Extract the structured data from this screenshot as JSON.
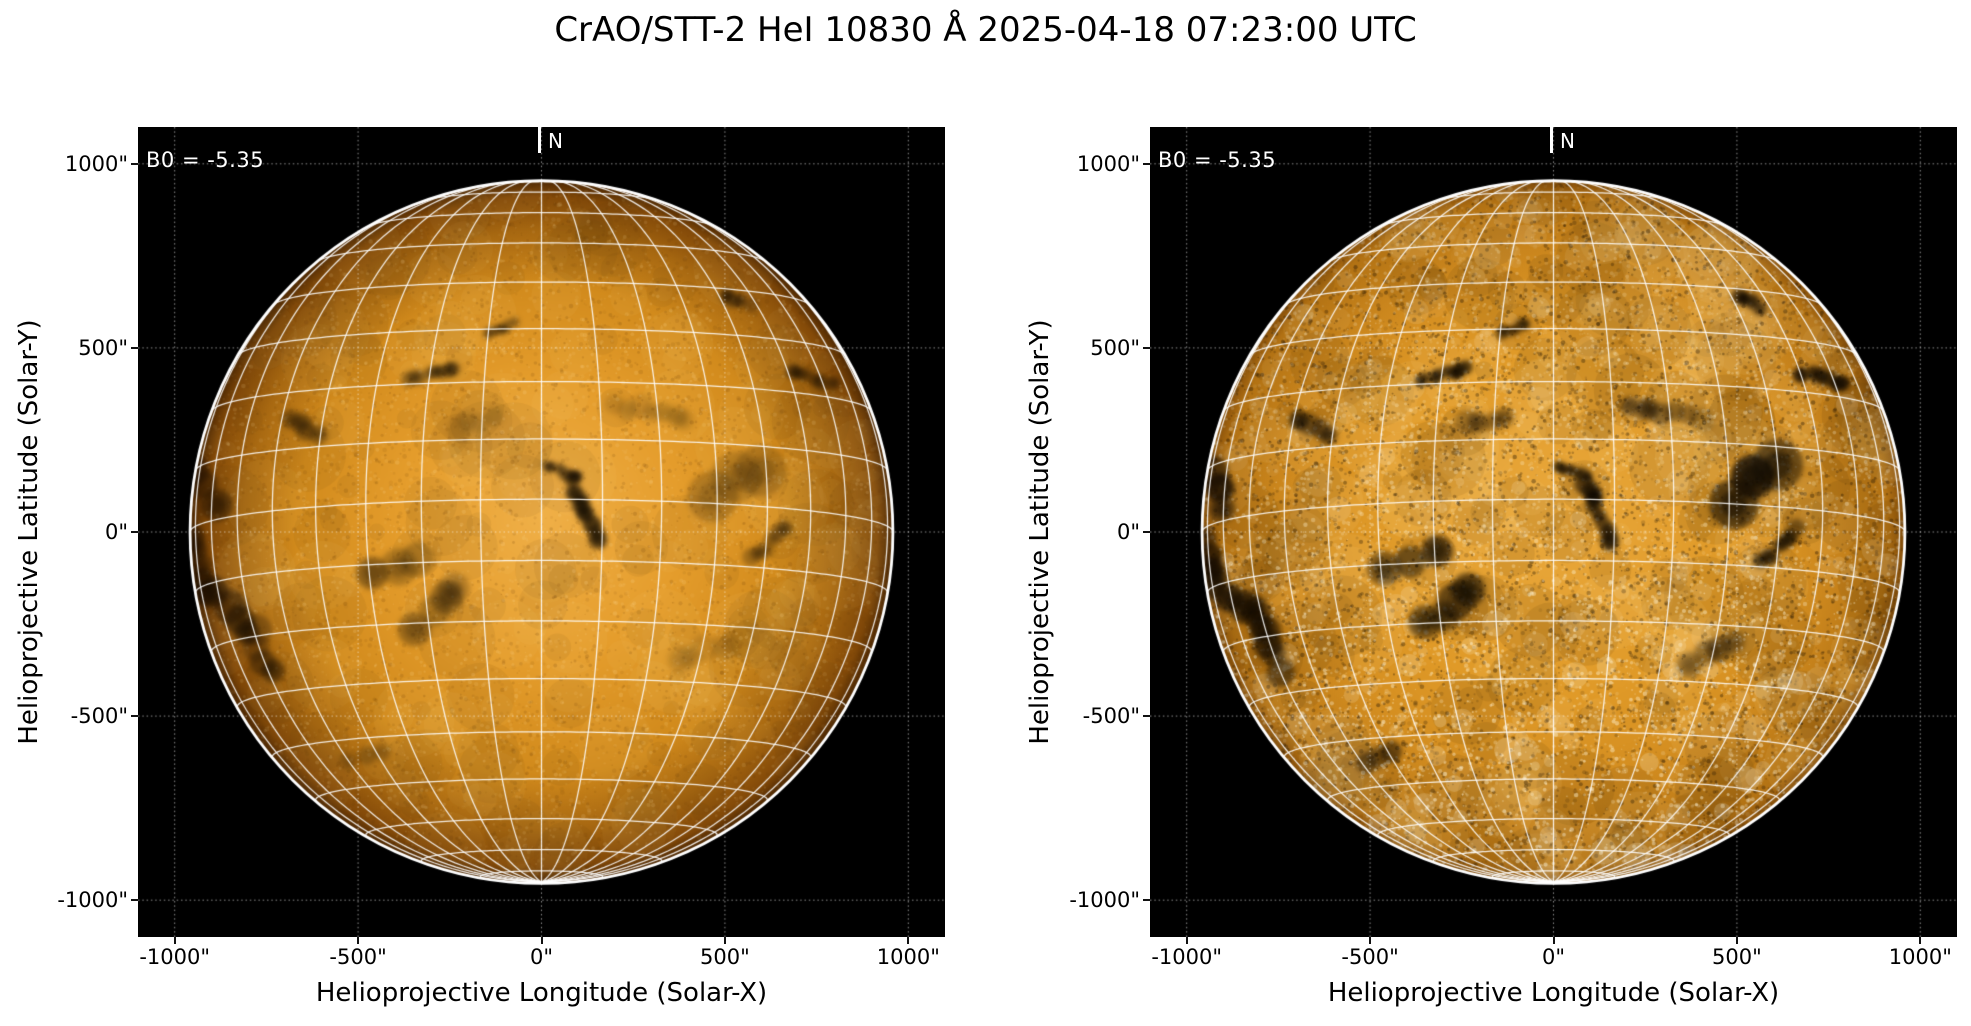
{
  "title": "CrAO/STT-2 HeI 10830 Å 2025-04-18 07:23:00 UTC",
  "axes": {
    "xlabel": "Helioprojective Longitude (Solar-X)",
    "ylabel": "Helioprojective Latitude (Solar-Y)",
    "x_tick_labels": [
      "-1000\"",
      "-500\"",
      "0\"",
      "500\"",
      "1000\""
    ],
    "y_tick_labels": [
      "1000\"",
      "500\"",
      "0\"",
      "-500\"",
      "-1000\""
    ]
  },
  "panels": [
    {
      "annotation": "B0 = -5.35",
      "north_label": "N",
      "processing": "smooth"
    },
    {
      "annotation": "B0 = -5.35",
      "north_label": "N",
      "processing": "contrast-enhanced"
    }
  ],
  "colors": {
    "background": "#000000",
    "figure_background": "#ffffff",
    "disk_center": "#efae45",
    "disk_mid": "#d18a1c",
    "disk_limb": "#7d4507",
    "grid_line": "#ffffff",
    "annotation_text": "#ffffff",
    "bright_speckle": "#fff3d6",
    "dark_feature": "#120b02"
  },
  "chart_data": {
    "type": "heatmap",
    "title": "CrAO/STT-2 HeI 10830 Å 2025-04-18 07:23:00 UTC",
    "instrument": "CrAO/STT-2",
    "spectral_line": "HeI 10830 Å",
    "datetime_utc": "2025-04-18 07:23:00 UTC",
    "b0_deg": -5.35,
    "solar_radius_arcsec": 958,
    "x_range_arcsec": [
      -1100,
      1100
    ],
    "y_range_arcsec": [
      -1100,
      1100
    ],
    "x_ticks": [
      -1000,
      -500,
      0,
      500,
      1000
    ],
    "y_ticks": [
      1000,
      500,
      0,
      -500,
      -1000
    ],
    "heliographic_grid_spacing_deg": 10,
    "grid_on": true,
    "panels": [
      {
        "label": "left",
        "enhanced": false,
        "annotation": "B0 = -5.35",
        "north_label": "N"
      },
      {
        "label": "right",
        "enhanced": true,
        "annotation": "B0 = -5.35",
        "north_label": "N"
      }
    ],
    "features": [
      {
        "x": -913,
        "y": 120,
        "len": 130,
        "wid": 80,
        "rot": -70,
        "aL": 0.7,
        "aR": 0.95
      },
      {
        "x": -935,
        "y": -90,
        "len": 150,
        "wid": 65,
        "rot": -80,
        "aL": 0.65,
        "aR": 0.95
      },
      {
        "x": -830,
        "y": -215,
        "len": 160,
        "wid": 85,
        "rot": -40,
        "aL": 0.6,
        "aR": 0.92
      },
      {
        "x": -775,
        "y": -325,
        "len": 140,
        "wid": 75,
        "rot": -60,
        "aL": 0.55,
        "aR": 0.9
      },
      {
        "x": -880,
        "y": -470,
        "len": 120,
        "wid": 65,
        "rot": -75,
        "aL": 0.5,
        "aR": 0.88
      },
      {
        "x": -825,
        "y": -690,
        "len": 100,
        "wid": 55,
        "rot": -55,
        "aL": 0.45,
        "aR": 0.85
      },
      {
        "x": -650,
        "y": 285,
        "len": 100,
        "wid": 55,
        "rot": -30,
        "aL": 0.5,
        "aR": 0.85
      },
      {
        "x": -400,
        "y": -90,
        "len": 160,
        "wid": 95,
        "rot": 20,
        "aL": 0.42,
        "aR": 0.8
      },
      {
        "x": -285,
        "y": -205,
        "len": 170,
        "wid": 95,
        "rot": 35,
        "aL": 0.42,
        "aR": 0.8
      },
      {
        "x": -300,
        "y": 430,
        "len": 150,
        "wid": 38,
        "rot": 15,
        "aL": 0.55,
        "aR": 0.85
      },
      {
        "x": -110,
        "y": 555,
        "len": 85,
        "wid": 30,
        "rot": 25,
        "aL": 0.45,
        "aR": 0.75
      },
      {
        "x": 120,
        "y": 55,
        "len": 200,
        "wid": 48,
        "rot": -65,
        "aL": 0.8,
        "aR": 0.97
      },
      {
        "x": 55,
        "y": 165,
        "len": 95,
        "wid": 32,
        "rot": -15,
        "aL": 0.7,
        "aR": 0.92
      },
      {
        "x": 535,
        "y": 630,
        "len": 85,
        "wid": 38,
        "rot": -30,
        "aL": 0.6,
        "aR": 0.88
      },
      {
        "x": 735,
        "y": 420,
        "len": 125,
        "wid": 42,
        "rot": -15,
        "aL": 0.6,
        "aR": 0.9
      },
      {
        "x": 545,
        "y": 130,
        "len": 190,
        "wid": 130,
        "rot": 40,
        "aL": 0.28,
        "aR": 0.9
      },
      {
        "x": 620,
        "y": -35,
        "len": 140,
        "wid": 45,
        "rot": 40,
        "aL": 0.4,
        "aR": 0.8
      },
      {
        "x": -770,
        "y": -850,
        "len": 75,
        "wid": 45,
        "rot": 0,
        "aL": 0.4,
        "aR": 0.7
      },
      {
        "x": -480,
        "y": -610,
        "len": 95,
        "wid": 55,
        "rot": 20,
        "aL": 0.28,
        "aR": 0.6
      },
      {
        "x": 300,
        "y": 330,
        "len": 210,
        "wid": 60,
        "rot": -10,
        "aL": 0.16,
        "aR": 0.45
      },
      {
        "x": -180,
        "y": 300,
        "len": 120,
        "wid": 60,
        "rot": 10,
        "aL": 0.18,
        "aR": 0.45
      },
      {
        "x": 430,
        "y": -330,
        "len": 150,
        "wid": 70,
        "rot": 25,
        "aL": 0.15,
        "aR": 0.45
      }
    ]
  }
}
